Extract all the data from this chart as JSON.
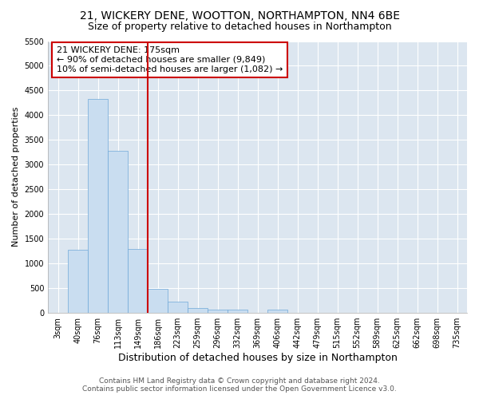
{
  "title": "21, WICKERY DENE, WOOTTON, NORTHAMPTON, NN4 6BE",
  "subtitle": "Size of property relative to detached houses in Northampton",
  "xlabel": "Distribution of detached houses by size in Northampton",
  "ylabel": "Number of detached properties",
  "bar_labels": [
    "3sqm",
    "40sqm",
    "76sqm",
    "113sqm",
    "149sqm",
    "186sqm",
    "223sqm",
    "259sqm",
    "296sqm",
    "332sqm",
    "369sqm",
    "406sqm",
    "442sqm",
    "479sqm",
    "515sqm",
    "552sqm",
    "589sqm",
    "625sqm",
    "662sqm",
    "698sqm",
    "735sqm"
  ],
  "bar_values": [
    0,
    1270,
    4330,
    3280,
    1290,
    480,
    230,
    100,
    65,
    60,
    0,
    60,
    0,
    0,
    0,
    0,
    0,
    0,
    0,
    0,
    0
  ],
  "bar_color": "#c9ddf0",
  "bar_edgecolor": "#6fa8d8",
  "vline_x_index": 5,
  "vline_color": "#cc0000",
  "annotation_title": "21 WICKERY DENE: 175sqm",
  "annotation_line1": "← 90% of detached houses are smaller (9,849)",
  "annotation_line2": "10% of semi-detached houses are larger (1,082) →",
  "annotation_box_edgecolor": "#cc0000",
  "ylim": [
    0,
    5500
  ],
  "yticks": [
    0,
    500,
    1000,
    1500,
    2000,
    2500,
    3000,
    3500,
    4000,
    4500,
    5000,
    5500
  ],
  "bg_color": "#ffffff",
  "plot_bg_color": "#dce6f0",
  "grid_color": "#ffffff",
  "footer_line1": "Contains HM Land Registry data © Crown copyright and database right 2024.",
  "footer_line2": "Contains public sector information licensed under the Open Government Licence v3.0.",
  "title_fontsize": 10,
  "subtitle_fontsize": 9,
  "xlabel_fontsize": 9,
  "ylabel_fontsize": 8,
  "tick_fontsize": 7,
  "footer_fontsize": 6.5,
  "annotation_fontsize": 8
}
